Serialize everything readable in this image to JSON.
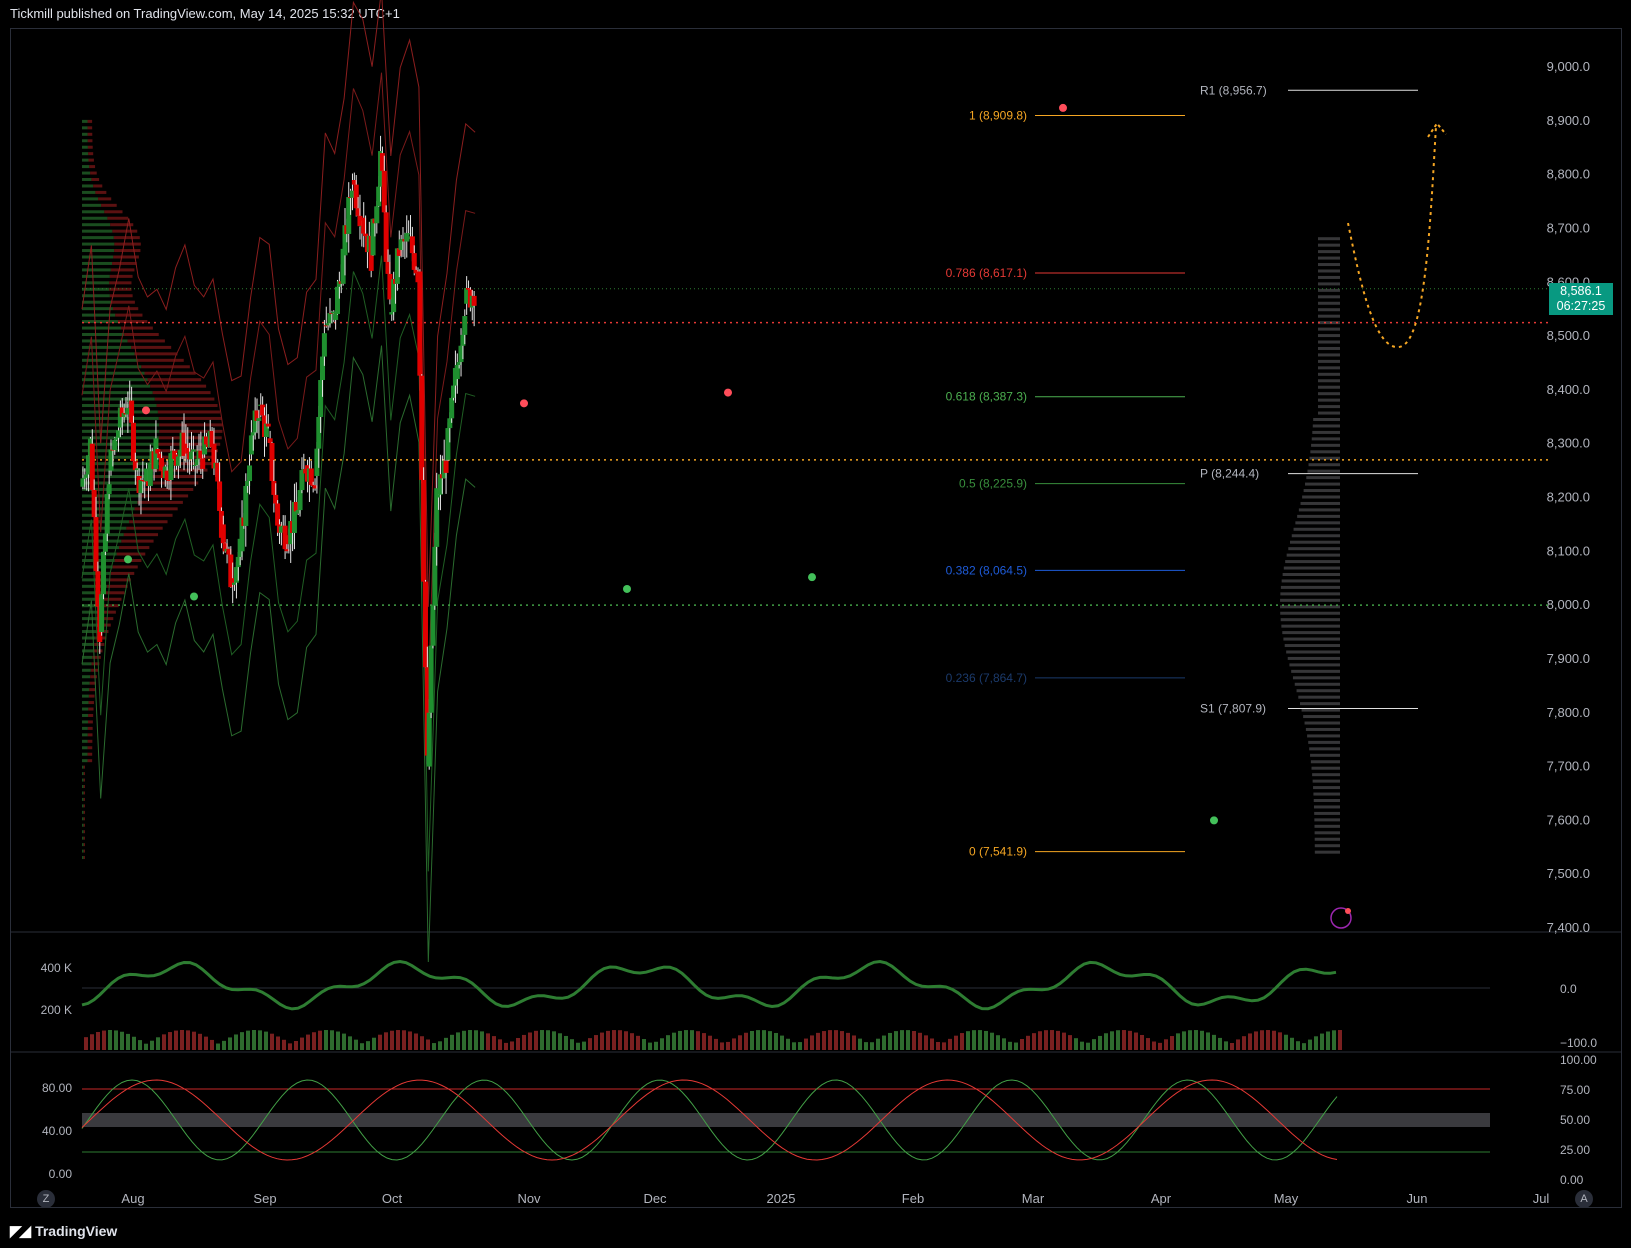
{
  "header": {
    "text": "Tickmill published on TradingView.com, May 14, 2025 15:32 UTC+1"
  },
  "footer": {
    "brand": "TradingView",
    "logo": "tradingview-logo-icon"
  },
  "buttons": {
    "left": "Z",
    "right": "A"
  },
  "colors": {
    "up": "#1f8f2f",
    "down": "#e00000",
    "accent_orange": "#f5a623",
    "badge": "#089981",
    "pivot_line": "#e0e0e0"
  },
  "last_price": {
    "value": "8,586.1",
    "countdown": "06:27:25"
  },
  "chart_data": [
    {
      "type": "candlestick",
      "pane": "price",
      "title": "",
      "y_ticks": [
        "9,000.0",
        "8,900.0",
        "8,800.0",
        "8,700.0",
        "8,600.0",
        "8,500.0",
        "8,400.0",
        "8,300.0",
        "8,200.0",
        "8,100.0",
        "8,000.0",
        "7,900.0",
        "7,800.0",
        "7,700.0",
        "7,600.0",
        "7,500.0",
        "7,400.0"
      ],
      "ylim": [
        7400,
        9000
      ],
      "x_ticks": [
        "Aug",
        "Sep",
        "Oct",
        "Nov",
        "Dec",
        "2025",
        "Feb",
        "Mar",
        "Apr",
        "May",
        "Jun",
        "Jul"
      ],
      "close_path": [
        {
          "date": "2024-07-22",
          "close": 8220
        },
        {
          "date": "2024-07-29",
          "close": 8300
        },
        {
          "date": "2024-08-05",
          "close": 7950
        },
        {
          "date": "2024-08-12",
          "close": 8250
        },
        {
          "date": "2024-08-19",
          "close": 8330
        },
        {
          "date": "2024-08-26",
          "close": 8380
        },
        {
          "date": "2024-09-02",
          "close": 8240
        },
        {
          "date": "2024-09-09",
          "close": 8230
        },
        {
          "date": "2024-09-16",
          "close": 8290
        },
        {
          "date": "2024-09-23",
          "close": 8250
        },
        {
          "date": "2024-09-30",
          "close": 8280
        },
        {
          "date": "2024-10-07",
          "close": 8300
        },
        {
          "date": "2024-10-14",
          "close": 8260
        },
        {
          "date": "2024-10-21",
          "close": 8280
        },
        {
          "date": "2024-10-28",
          "close": 8300
        },
        {
          "date": "2024-11-04",
          "close": 8150
        },
        {
          "date": "2024-11-11",
          "close": 8050
        },
        {
          "date": "2024-11-18",
          "close": 8100
        },
        {
          "date": "2024-11-25",
          "close": 8280
        },
        {
          "date": "2024-12-02",
          "close": 8370
        },
        {
          "date": "2024-12-09",
          "close": 8310
        },
        {
          "date": "2024-12-16",
          "close": 8150
        },
        {
          "date": "2024-12-23",
          "close": 8130
        },
        {
          "date": "2024-12-30",
          "close": 8170
        },
        {
          "date": "2025-01-06",
          "close": 8260
        },
        {
          "date": "2025-01-13",
          "close": 8240
        },
        {
          "date": "2025-01-20",
          "close": 8520
        },
        {
          "date": "2025-01-27",
          "close": 8530
        },
        {
          "date": "2025-02-03",
          "close": 8650
        },
        {
          "date": "2025-02-10",
          "close": 8790
        },
        {
          "date": "2025-02-17",
          "close": 8720
        },
        {
          "date": "2025-02-24",
          "close": 8650
        },
        {
          "date": "2025-03-03",
          "close": 8840
        },
        {
          "date": "2025-03-10",
          "close": 8540
        },
        {
          "date": "2025-03-17",
          "close": 8660
        },
        {
          "date": "2025-03-24",
          "close": 8680
        },
        {
          "date": "2025-03-31",
          "close": 8620
        },
        {
          "date": "2025-04-07",
          "close": 7700
        },
        {
          "date": "2025-04-14",
          "close": 8200
        },
        {
          "date": "2025-04-21",
          "close": 8270
        },
        {
          "date": "2025-04-28",
          "close": 8420
        },
        {
          "date": "2025-05-05",
          "close": 8560
        },
        {
          "date": "2025-05-12",
          "close": 8586
        }
      ],
      "horizontal_lines": [
        {
          "price": 8525,
          "style": "dotted",
          "color": "red"
        },
        {
          "price": 8270,
          "style": "dotted",
          "color": "orange"
        },
        {
          "price": 8000,
          "style": "dotted",
          "color": "green"
        }
      ],
      "fibonacci": [
        {
          "label": "1 (8,909.8)",
          "price": 8909.8,
          "color": "#f5a623"
        },
        {
          "label": "0.786 (8,617.1)",
          "price": 8617.1,
          "color": "#e53935"
        },
        {
          "label": "0.618 (8,387.3)",
          "price": 8387.3,
          "color": "#4caf50"
        },
        {
          "label": "0.5 (8,225.9)",
          "price": 8225.9,
          "color": "#388e3c"
        },
        {
          "label": "0.382 (8,064.5)",
          "price": 8064.5,
          "color": "#1e5bd8"
        },
        {
          "label": "0.236 (7,864.7)",
          "price": 7864.7,
          "color": "#1b3a6b"
        },
        {
          "label": "0 (7,541.9)",
          "price": 7541.9,
          "color": "#f5a623"
        }
      ],
      "pivots": [
        {
          "label": "R1 (8,956.7)",
          "price": 8956.7
        },
        {
          "label": "P (8,244.4)",
          "price": 8244.4
        },
        {
          "label": "S1 (7,807.9)",
          "price": 7807.9
        }
      ],
      "projection": "orange dotted path from 8,710 dipping to 8,480 and rising to 8,900"
    },
    {
      "type": "line",
      "pane": "volume-oscillator",
      "left_ticks": [
        "400 K",
        "200 K"
      ],
      "right_ticks": [
        "0.0",
        "−100.0"
      ],
      "series_colors": [
        "#2e7d32",
        "#b71c1c"
      ]
    },
    {
      "type": "line",
      "pane": "stochastic",
      "left_ticks": [
        "80.00",
        "40.00",
        "0.00"
      ],
      "right_ticks": [
        "100.00",
        "75.00",
        "50.00",
        "25.00",
        "0.00"
      ],
      "bands": [
        80,
        20
      ]
    }
  ]
}
